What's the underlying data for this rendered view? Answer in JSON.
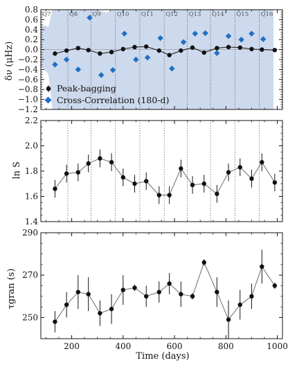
{
  "colors": {
    "series_black": "#111111",
    "series_blue": "#1f6fc5",
    "band_fill": "#cdd9ec",
    "connector": "#777777",
    "quarter_line": "#666666"
  },
  "quarters": [
    {
      "label": "Q7",
      "start_day": 60
    },
    {
      "label": "Q8",
      "start_day": 185
    },
    {
      "label": "Q9",
      "start_day": 275
    },
    {
      "label": "Q10",
      "start_day": 370
    },
    {
      "label": "Q11",
      "start_day": 465
    },
    {
      "label": "Q12",
      "start_day": 560
    },
    {
      "label": "Q13",
      "start_day": 650
    },
    {
      "label": "Q14",
      "start_day": 740
    },
    {
      "label": "Q15",
      "start_day": 835
    },
    {
      "label": "Q16",
      "start_day": 930
    }
  ],
  "shared_x": {
    "label": "Time (days)",
    "lim": [
      80,
      1020
    ],
    "ticks": [
      200,
      400,
      600,
      800,
      1000
    ]
  },
  "chart_data": [
    {
      "type": "scatter",
      "ylabel": "δν (μHz)",
      "ylim": [
        -1.2,
        0.8
      ],
      "yticks": [
        -1.2,
        -1.0,
        -0.8,
        -0.6,
        -0.4,
        -0.2,
        0.0,
        0.2,
        0.4,
        0.6,
        0.8
      ],
      "ytick_labels": [
        "−1.2",
        "−1.0",
        "−0.8",
        "−0.6",
        "−0.4",
        "−0.2",
        "0.0",
        "0.2",
        "0.4",
        "0.6",
        "0.8"
      ],
      "legend": {
        "placement": "lower-left",
        "entries": [
          "Peak-bagging",
          "Cross-Correlation (180-d)"
        ]
      },
      "series": [
        {
          "name": "Peak-bagging",
          "x": [
            135,
            180,
            225,
            265,
            310,
            355,
            400,
            445,
            490,
            540,
            580,
            625,
            670,
            715,
            765,
            810,
            855,
            900,
            940,
            990
          ],
          "y": [
            -0.08,
            -0.02,
            0.03,
            -0.01,
            -0.08,
            -0.05,
            0.01,
            0.05,
            0.06,
            -0.02,
            -0.11,
            -0.02,
            0.04,
            -0.06,
            0.03,
            0.05,
            0.04,
            0.01,
            0.0,
            -0.01
          ],
          "yerr": [
            0.03,
            0.03,
            0.03,
            0.03,
            0.03,
            0.03,
            0.03,
            0.03,
            0.03,
            0.03,
            0.03,
            0.03,
            0.03,
            0.03,
            0.03,
            0.03,
            0.03,
            0.03,
            0.03,
            0.03
          ]
        },
        {
          "name": "Cross-Correlation (180-d)",
          "x": [
            135,
            180,
            225,
            270,
            315,
            360,
            405,
            450,
            495,
            545,
            590,
            635,
            680,
            720,
            765,
            810,
            860,
            900,
            945
          ],
          "y": [
            -0.3,
            -0.2,
            -0.4,
            0.64,
            -0.51,
            -0.41,
            0.32,
            -0.2,
            -0.16,
            0.23,
            -0.38,
            0.15,
            0.32,
            0.33,
            -0.07,
            0.27,
            0.2,
            0.32,
            0.21
          ]
        }
      ],
      "band": {
        "x": [
          80,
          110,
          125,
          150,
          185,
          215,
          245,
          300,
          335,
          360,
          385,
          420,
          450,
          480,
          510,
          545,
          580,
          620,
          660,
          700,
          740,
          780,
          820,
          860,
          900,
          940,
          960,
          980,
          985
        ],
        "upper": [
          0.5,
          0.46,
          0.82,
          0.82,
          0.82,
          0.82,
          0.82,
          0.82,
          0.74,
          0.82,
          0.82,
          0.82,
          0.82,
          0.82,
          0.82,
          0.82,
          0.82,
          0.82,
          0.82,
          0.82,
          0.82,
          0.82,
          0.82,
          0.82,
          0.82,
          0.82,
          0.82,
          0.82,
          0.82
        ],
        "lower": [
          -0.32,
          -0.5,
          -1.2,
          -1.2,
          -1.2,
          -1.2,
          -1.2,
          -1.2,
          -1.2,
          -1.2,
          -1.2,
          -1.2,
          -1.2,
          -1.2,
          -1.2,
          -1.2,
          -1.2,
          -1.2,
          -1.2,
          -1.2,
          -1.2,
          -1.2,
          -1.2,
          -1.2,
          -1.2,
          -1.2,
          -1.2,
          -1.2,
          -1.2
        ]
      }
    },
    {
      "type": "line",
      "ylabel": "ln S",
      "ylim": [
        1.4,
        2.2
      ],
      "yticks": [
        1.4,
        1.6,
        1.8,
        2.0,
        2.2
      ],
      "ytick_labels": [
        "1.4",
        "1.6",
        "1.8",
        "2.0",
        "2.2"
      ],
      "series": [
        {
          "x": [
            135,
            180,
            225,
            265,
            310,
            355,
            400,
            445,
            490,
            540,
            580,
            625,
            670,
            715,
            765,
            810,
            855,
            900,
            940,
            990
          ],
          "y": [
            1.66,
            1.78,
            1.79,
            1.86,
            1.9,
            1.87,
            1.75,
            1.7,
            1.72,
            1.61,
            1.61,
            1.82,
            1.69,
            1.7,
            1.62,
            1.79,
            1.83,
            1.74,
            1.87,
            1.71
          ],
          "yerr": [
            0.07,
            0.07,
            0.07,
            0.07,
            0.07,
            0.07,
            0.07,
            0.07,
            0.07,
            0.07,
            0.07,
            0.07,
            0.07,
            0.07,
            0.07,
            0.07,
            0.07,
            0.07,
            0.07,
            0.07
          ]
        }
      ]
    },
    {
      "type": "line",
      "ylabel": "τgran (s)",
      "ylim": [
        240,
        290
      ],
      "yticks": [
        250,
        270,
        290
      ],
      "ytick_labels": [
        "250",
        "270",
        "290"
      ],
      "series": [
        {
          "x": [
            135,
            180,
            225,
            265,
            310,
            355,
            400,
            445,
            490,
            540,
            580,
            625,
            670,
            715,
            765,
            810,
            855,
            900,
            940,
            990
          ],
          "y": [
            248,
            256,
            262,
            261,
            252,
            254,
            263,
            264,
            260,
            262,
            266,
            261,
            260,
            276,
            262,
            249,
            256,
            260,
            274,
            265
          ],
          "yerr": [
            5,
            6,
            8,
            8,
            6,
            7,
            7,
            1.5,
            5,
            5,
            5,
            6,
            1.5,
            1.5,
            7,
            9,
            7,
            6,
            8,
            1.5
          ]
        }
      ]
    }
  ]
}
